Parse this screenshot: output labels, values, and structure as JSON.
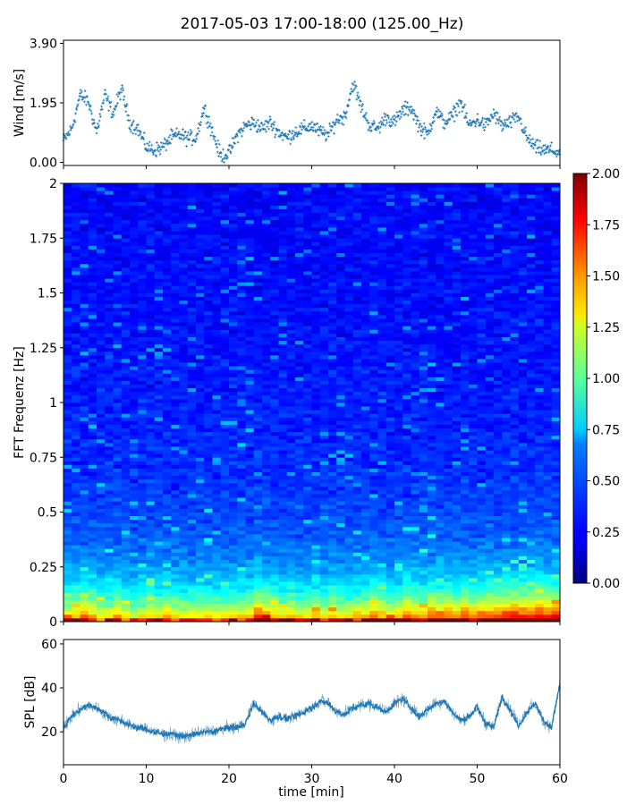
{
  "title": "2017-05-03 17:00-18:00 (125.00_Hz)",
  "chart_data": [
    {
      "type": "scatter",
      "name": "wind",
      "ylabel": "Wind [m/s]",
      "yticks": [
        "0.00",
        "1.95",
        "3.90"
      ],
      "ylim": [
        -0.1,
        4.0
      ],
      "xlim": [
        0,
        60
      ],
      "color": "#1f77b4",
      "marker": "plus",
      "x": [
        0,
        1,
        2,
        3,
        4,
        5,
        6,
        7,
        8,
        9,
        10,
        11,
        12,
        13,
        14,
        15,
        16,
        17,
        18,
        19,
        20,
        21,
        22,
        23,
        24,
        25,
        26,
        27,
        28,
        29,
        30,
        31,
        32,
        33,
        34,
        35,
        36,
        37,
        38,
        39,
        40,
        41,
        42,
        43,
        44,
        45,
        46,
        47,
        48,
        49,
        50,
        51,
        52,
        53,
        54,
        55,
        56,
        57,
        58,
        59,
        60
      ],
      "y": [
        0.7,
        1.1,
        2.2,
        2.0,
        1.0,
        2.2,
        1.6,
        2.4,
        1.3,
        1.1,
        0.5,
        0.4,
        0.5,
        0.8,
        0.9,
        0.8,
        0.8,
        1.8,
        1.0,
        0.2,
        0.3,
        0.9,
        1.2,
        1.3,
        1.1,
        1.3,
        1.0,
        0.8,
        1.0,
        1.1,
        1.2,
        1.0,
        0.9,
        1.4,
        1.5,
        2.6,
        1.8,
        1.2,
        1.1,
        1.5,
        1.3,
        1.7,
        1.8,
        1.2,
        0.9,
        1.7,
        1.3,
        1.5,
        2.0,
        1.2,
        1.4,
        1.2,
        1.6,
        1.2,
        1.3,
        1.5,
        0.8,
        0.5,
        0.4,
        0.4,
        0.3
      ]
    },
    {
      "type": "heatmap",
      "name": "spectrogram",
      "ylabel": "FFT Frequenz [Hz]",
      "yticks": [
        "0",
        "0.25",
        "0.5",
        "0.75",
        "1",
        "1.25",
        "1.5",
        "1.75",
        "2"
      ],
      "ylim": [
        0,
        2
      ],
      "xlim": [
        0,
        60
      ],
      "colormap": "jet",
      "colorbar": {
        "min": 0,
        "max": 2,
        "ticks": [
          "0.00",
          "0.25",
          "0.50",
          "0.75",
          "1.00",
          "1.25",
          "1.50",
          "1.75",
          "2.00"
        ]
      },
      "band_energy_over_time": [
        0.3,
        0.35,
        0.4,
        0.35,
        0.3,
        0.3,
        0.35,
        0.3,
        0.28,
        0.3,
        0.32,
        0.3,
        0.35,
        0.32,
        0.3,
        0.3,
        0.32,
        0.3,
        0.3,
        0.3,
        0.3,
        0.32,
        0.33,
        0.45,
        0.4,
        0.35,
        0.3,
        0.35,
        0.3,
        0.3,
        0.35,
        0.3,
        0.35,
        0.3,
        0.3,
        0.35,
        0.35,
        0.4,
        0.35,
        0.3,
        0.35,
        0.4,
        0.38,
        0.35,
        0.42,
        0.38,
        0.4,
        0.38,
        0.45,
        0.38,
        0.4,
        0.42,
        0.45,
        0.45,
        0.48,
        0.45,
        0.45,
        0.5,
        0.45,
        0.48
      ]
    },
    {
      "type": "line",
      "name": "spl",
      "ylabel": "SPL [dB]",
      "xlabel": "time [min]",
      "yticks": [
        "20",
        "40",
        "60"
      ],
      "xticks": [
        "0",
        "10",
        "20",
        "30",
        "40",
        "50",
        "60"
      ],
      "ylim": [
        5,
        62
      ],
      "xlim": [
        0,
        60
      ],
      "color": "#1f77b4",
      "x": [
        0,
        1,
        2,
        3,
        4,
        5,
        6,
        7,
        8,
        9,
        10,
        11,
        12,
        13,
        14,
        15,
        16,
        17,
        18,
        19,
        20,
        21,
        22,
        23,
        24,
        25,
        26,
        27,
        28,
        29,
        30,
        31,
        32,
        33,
        34,
        35,
        36,
        37,
        38,
        39,
        40,
        41,
        42,
        43,
        44,
        45,
        46,
        47,
        48,
        49,
        50,
        51,
        52,
        53,
        54,
        55,
        56,
        57,
        58,
        59,
        60
      ],
      "y": [
        22,
        27,
        30,
        32,
        31,
        28,
        26,
        25,
        23,
        22,
        21,
        20,
        19,
        19,
        18,
        18,
        19,
        20,
        20,
        21,
        22,
        22,
        24,
        33,
        29,
        25,
        27,
        26,
        27,
        29,
        31,
        34,
        33,
        29,
        28,
        31,
        32,
        33,
        31,
        29,
        33,
        35,
        31,
        27,
        30,
        33,
        34,
        29,
        25,
        27,
        31,
        24,
        22,
        36,
        30,
        23,
        29,
        33,
        25,
        22,
        42
      ]
    }
  ]
}
